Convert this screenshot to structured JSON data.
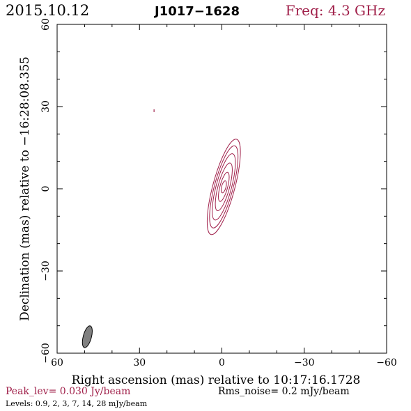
{
  "header": {
    "date": "2015.10.12",
    "source": "J1017−1628",
    "frequency": "Freq: 4.3 GHz"
  },
  "footer": {
    "peak": "Peak_lev=  0.030 Jy/beam",
    "noise": "Rms_noise=  0.2 mJy/beam",
    "levels": "Levels: 0.9,   2,   3,   7,  14,  28 mJy/beam"
  },
  "colors": {
    "contour": "#a0204a",
    "beam": "#808080",
    "axes": "#000000",
    "frequency_text": "#a0204a",
    "peak_text": "#a0204a"
  },
  "chart_data": {
    "type": "contour",
    "xlabel": "Right ascension (mas) relative to 10:17:16.1728",
    "ylabel": "Declination (mas) relative to −16:28:08.355",
    "xlim": [
      60,
      -60
    ],
    "ylim": [
      -60,
      60
    ],
    "x_ticks": [
      60,
      30,
      0,
      -30,
      -60
    ],
    "y_ticks": [
      -60,
      -30,
      0,
      30,
      60
    ],
    "x_tick_labels": [
      "60",
      "30",
      "0",
      "−30",
      "−60"
    ],
    "y_tick_labels": [
      "−60",
      "−30",
      "0",
      "30",
      "60"
    ],
    "contour_levels_mJy": [
      0.9,
      2,
      3,
      7,
      14,
      28
    ],
    "peak_Jy_per_beam": 0.03,
    "rms_noise_mJy_per_beam": 0.2,
    "source_component": {
      "center_ra": -0.7,
      "center_dec": 0.7,
      "position_angle_deg": 15,
      "contours": [
        {
          "level_mJy": 0.9,
          "major_axis_mas": 36,
          "minor_axis_mas": 8
        },
        {
          "level_mJy": 2,
          "major_axis_mas": 31,
          "minor_axis_mas": 6.8
        },
        {
          "level_mJy": 3,
          "major_axis_mas": 25,
          "minor_axis_mas": 5.6
        },
        {
          "level_mJy": 7,
          "major_axis_mas": 18,
          "minor_axis_mas": 4.2
        },
        {
          "level_mJy": 14,
          "major_axis_mas": 11,
          "minor_axis_mas": 2.8
        },
        {
          "level_mJy": 28,
          "major_axis_mas": 4.5,
          "minor_axis_mas": 1.6
        }
      ]
    },
    "isolated_contours": [
      {
        "ra": 24.7,
        "dec": 28.5,
        "level_mJy": 0.9
      }
    ],
    "beam": {
      "center_ra": 49,
      "center_dec": -54,
      "major_axis_mas": 8.2,
      "minor_axis_mas": 3.0,
      "position_angle_deg": 15
    }
  }
}
